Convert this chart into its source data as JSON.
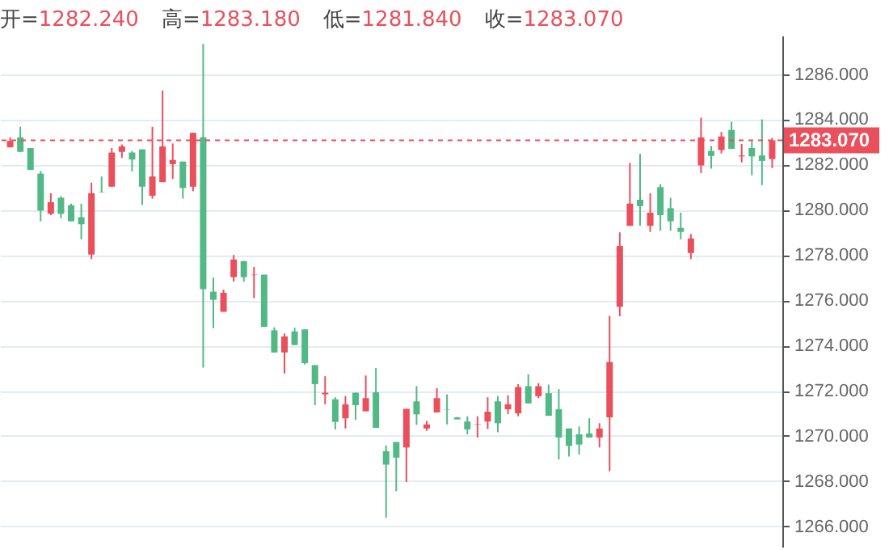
{
  "chart_data": {
    "type": "candlestick",
    "annotations": [
      "开=1282.240",
      "高=1283.180",
      "低=1281.840",
      "收=1283.070"
    ],
    "categories": [
      null,
      null,
      null,
      null,
      null,
      null,
      null,
      null,
      null,
      null,
      null,
      null,
      null,
      null,
      null,
      null,
      null,
      null,
      null,
      null,
      null,
      null,
      null,
      null,
      null,
      null,
      null,
      null,
      null,
      null,
      null,
      null,
      null,
      null,
      null,
      null,
      null,
      null,
      null,
      null,
      null,
      null,
      null,
      null,
      null,
      null,
      null,
      null,
      null,
      null,
      null,
      null,
      null,
      null,
      null,
      null,
      null,
      null,
      null,
      null,
      null,
      null,
      null,
      null,
      null,
      null,
      null,
      null,
      null,
      null,
      null,
      null,
      null,
      null,
      null,
      null
    ],
    "ohlc": [
      [
        1282.76,
        1283.2,
        1282.76,
        1283.04
      ],
      [
        1283.2,
        1283.67,
        1282.56,
        1282.56
      ],
      [
        1282.73,
        1282.73,
        1281.76,
        1281.76
      ],
      [
        1281.6,
        1281.71,
        1279.49,
        1279.96
      ],
      [
        1279.82,
        1280.73,
        1279.76,
        1280.33
      ],
      [
        1280.53,
        1280.6,
        1279.62,
        1279.82
      ],
      [
        1280.2,
        1280.27,
        1279.49,
        1279.49
      ],
      [
        1279.67,
        1280.27,
        1278.69,
        1279.36
      ],
      [
        1278.02,
        1281.2,
        1277.82,
        1280.73
      ],
      [
        1280.78,
        1281.47,
        1280.76,
        1280.76
      ],
      [
        1281.02,
        1282.73,
        1281.02,
        1282.53
      ],
      [
        1282.56,
        1282.89,
        1282.29,
        1282.8
      ],
      [
        1282.53,
        1282.6,
        1281.69,
        1282.22
      ],
      [
        1282.67,
        1282.67,
        1280.22,
        1281.02
      ],
      [
        1280.62,
        1283.67,
        1280.49,
        1281.47
      ],
      [
        1281.22,
        1285.27,
        1281.22,
        1282.8
      ],
      [
        1282.02,
        1282.93,
        1281.36,
        1282.2
      ],
      [
        1282.13,
        1282.13,
        1280.49,
        1280.96
      ],
      [
        1281.02,
        1283.4,
        1280.82,
        1283.4
      ],
      [
        1283.2,
        1287.33,
        1273.02,
        1276.49
      ],
      [
        1276.38,
        1277.0,
        1274.76,
        1276.02
      ],
      [
        1275.49,
        1276.47,
        1275.49,
        1276.33
      ],
      [
        1277.02,
        1278.0,
        1276.82,
        1277.8
      ],
      [
        1277.73,
        1277.73,
        1276.82,
        1277.02
      ],
      [
        1277.11,
        1277.47,
        1276.09,
        1277.13
      ],
      [
        1277.13,
        1277.13,
        1274.82,
        1274.82
      ],
      [
        1274.67,
        1274.8,
        1273.69,
        1273.69
      ],
      [
        1273.69,
        1274.53,
        1272.76,
        1274.4
      ],
      [
        1274.62,
        1274.78,
        1274.02,
        1274.02
      ],
      [
        1274.71,
        1274.71,
        1273.16,
        1273.22
      ],
      [
        1273.13,
        1273.13,
        1271.36,
        1272.29
      ],
      [
        1271.84,
        1272.64,
        1271.4,
        1271.91
      ],
      [
        1271.62,
        1271.71,
        1270.29,
        1270.62
      ],
      [
        1270.78,
        1271.76,
        1270.33,
        1271.4
      ],
      [
        1271.91,
        1271.91,
        1270.71,
        1271.36
      ],
      [
        1271.09,
        1272.67,
        1271.09,
        1271.67
      ],
      [
        1271.93,
        1273.0,
        1270.36,
        1270.36
      ],
      [
        1269.33,
        1269.58,
        1266.38,
        1268.73
      ],
      [
        1269.73,
        1269.73,
        1267.56,
        1269.04
      ],
      [
        1269.49,
        1271.2,
        1267.96,
        1271.2
      ],
      [
        1271.53,
        1272.2,
        1270.49,
        1270.96
      ],
      [
        1270.33,
        1270.67,
        1270.22,
        1270.51
      ],
      [
        1271.04,
        1272.11,
        1271.04,
        1271.67
      ],
      [
        1271.18,
        1271.84,
        1270.51,
        1271.16
      ],
      [
        1270.82,
        1270.84,
        1270.73,
        1270.73
      ],
      [
        1270.64,
        1270.87,
        1270.07,
        1270.29
      ],
      [
        1270.51,
        1270.87,
        1269.93,
        1270.53
      ],
      [
        1270.64,
        1271.71,
        1270.31,
        1271.07
      ],
      [
        1271.53,
        1271.76,
        1270.16,
        1270.56
      ],
      [
        1271.18,
        1271.8,
        1270.96,
        1271.4
      ],
      [
        1271.0,
        1272.29,
        1270.87,
        1272.16
      ],
      [
        1272.2,
        1272.73,
        1271.44,
        1271.44
      ],
      [
        1271.76,
        1272.33,
        1271.67,
        1272.2
      ],
      [
        1271.89,
        1272.27,
        1270.89,
        1270.89
      ],
      [
        1271.18,
        1272.07,
        1268.96,
        1269.93
      ],
      [
        1270.33,
        1270.33,
        1269.09,
        1269.56
      ],
      [
        1270.07,
        1270.42,
        1269.18,
        1269.62
      ],
      [
        1270.11,
        1270.78,
        1269.93,
        1269.93
      ],
      [
        1269.93,
        1270.56,
        1269.49,
        1270.33
      ],
      [
        1270.82,
        1275.31,
        1268.44,
        1273.27
      ],
      [
        1275.71,
        1279.0,
        1275.29,
        1278.4
      ],
      [
        1279.29,
        1282.07,
        1279.29,
        1280.27
      ],
      [
        1280.44,
        1282.47,
        1279.29,
        1280.16
      ],
      [
        1279.29,
        1280.73,
        1279.02,
        1279.87
      ],
      [
        1281.0,
        1281.13,
        1279.07,
        1279.76
      ],
      [
        1280.07,
        1280.53,
        1279.07,
        1279.49
      ],
      [
        1279.2,
        1279.87,
        1278.69,
        1279.02
      ],
      [
        1278.09,
        1278.93,
        1277.82,
        1278.73
      ],
      [
        1281.96,
        1284.07,
        1281.62,
        1283.2
      ],
      [
        1282.6,
        1282.82,
        1281.82,
        1282.38
      ],
      [
        1282.64,
        1283.44,
        1282.49,
        1283.24
      ],
      [
        1283.53,
        1283.89,
        1282.69,
        1282.69
      ],
      [
        1282.36,
        1282.91,
        1282.09,
        1282.4
      ],
      [
        1282.73,
        1283.04,
        1281.53,
        1282.36
      ],
      [
        1282.4,
        1284.0,
        1281.09,
        1282.16
      ],
      [
        1282.24,
        1283.18,
        1281.84,
        1283.07
      ]
    ],
    "colors": [
      "#ea4f5c",
      "#52b986",
      "#52b986",
      "#52b986",
      "#ea4f5c",
      "#52b986",
      "#52b986",
      "#52b986",
      "#ea4f5c",
      "#52b986",
      "#ea4f5c",
      "#ea4f5c",
      "#52b986",
      "#52b986",
      "#ea4f5c",
      "#ea4f5c",
      "#ea4f5c",
      "#52b986",
      "#ea4f5c",
      "#52b986",
      "#52b986",
      "#ea4f5c",
      "#ea4f5c",
      "#52b986",
      "#ea4f5c",
      "#52b986",
      "#52b986",
      "#ea4f5c",
      "#52b986",
      "#52b986",
      "#52b986",
      "#ea4f5c",
      "#52b986",
      "#ea4f5c",
      "#52b986",
      "#ea4f5c",
      "#52b986",
      "#52b986",
      "#52b986",
      "#ea4f5c",
      "#52b986",
      "#ea4f5c",
      "#ea4f5c",
      "#52b986",
      "#52b986",
      "#52b986",
      "#ea4f5c",
      "#ea4f5c",
      "#52b986",
      "#ea4f5c",
      "#ea4f5c",
      "#52b986",
      "#ea4f5c",
      "#52b986",
      "#52b986",
      "#52b986",
      "#52b986",
      "#52b986",
      "#ea4f5c",
      "#ea4f5c",
      "#ea4f5c",
      "#ea4f5c",
      "#52b986",
      "#ea4f5c",
      "#52b986",
      "#52b986",
      "#52b986",
      "#ea4f5c",
      "#ea4f5c",
      "#52b986",
      "#ea4f5c",
      "#52b986",
      "#ea4f5c",
      "#52b986",
      "#52b986",
      "#ea4f5c"
    ],
    "ylim": [
      1265.1,
      1287.7
    ],
    "yticks": [
      {
        "value": 1266,
        "label": "1266.000"
      },
      {
        "value": 1268,
        "label": "1268.000"
      },
      {
        "value": 1270,
        "label": "1270.000"
      },
      {
        "value": 1272,
        "label": "1272.000"
      },
      {
        "value": 1274,
        "label": "1274.000"
      },
      {
        "value": 1276,
        "label": "1276.000"
      },
      {
        "value": 1278,
        "label": "1278.000"
      },
      {
        "value": 1280,
        "label": "1280.000"
      },
      {
        "value": 1282,
        "label": "1282.000"
      },
      {
        "value": 1284,
        "label": "1284.000"
      },
      {
        "value": 1286,
        "label": "1286.000"
      }
    ],
    "ref_lines": [
      {
        "axis": "y",
        "value": 1283.07,
        "label": "1283.070",
        "color": "#ea4f5c",
        "line_style": "dashed"
      }
    ],
    "grid": "y"
  }
}
